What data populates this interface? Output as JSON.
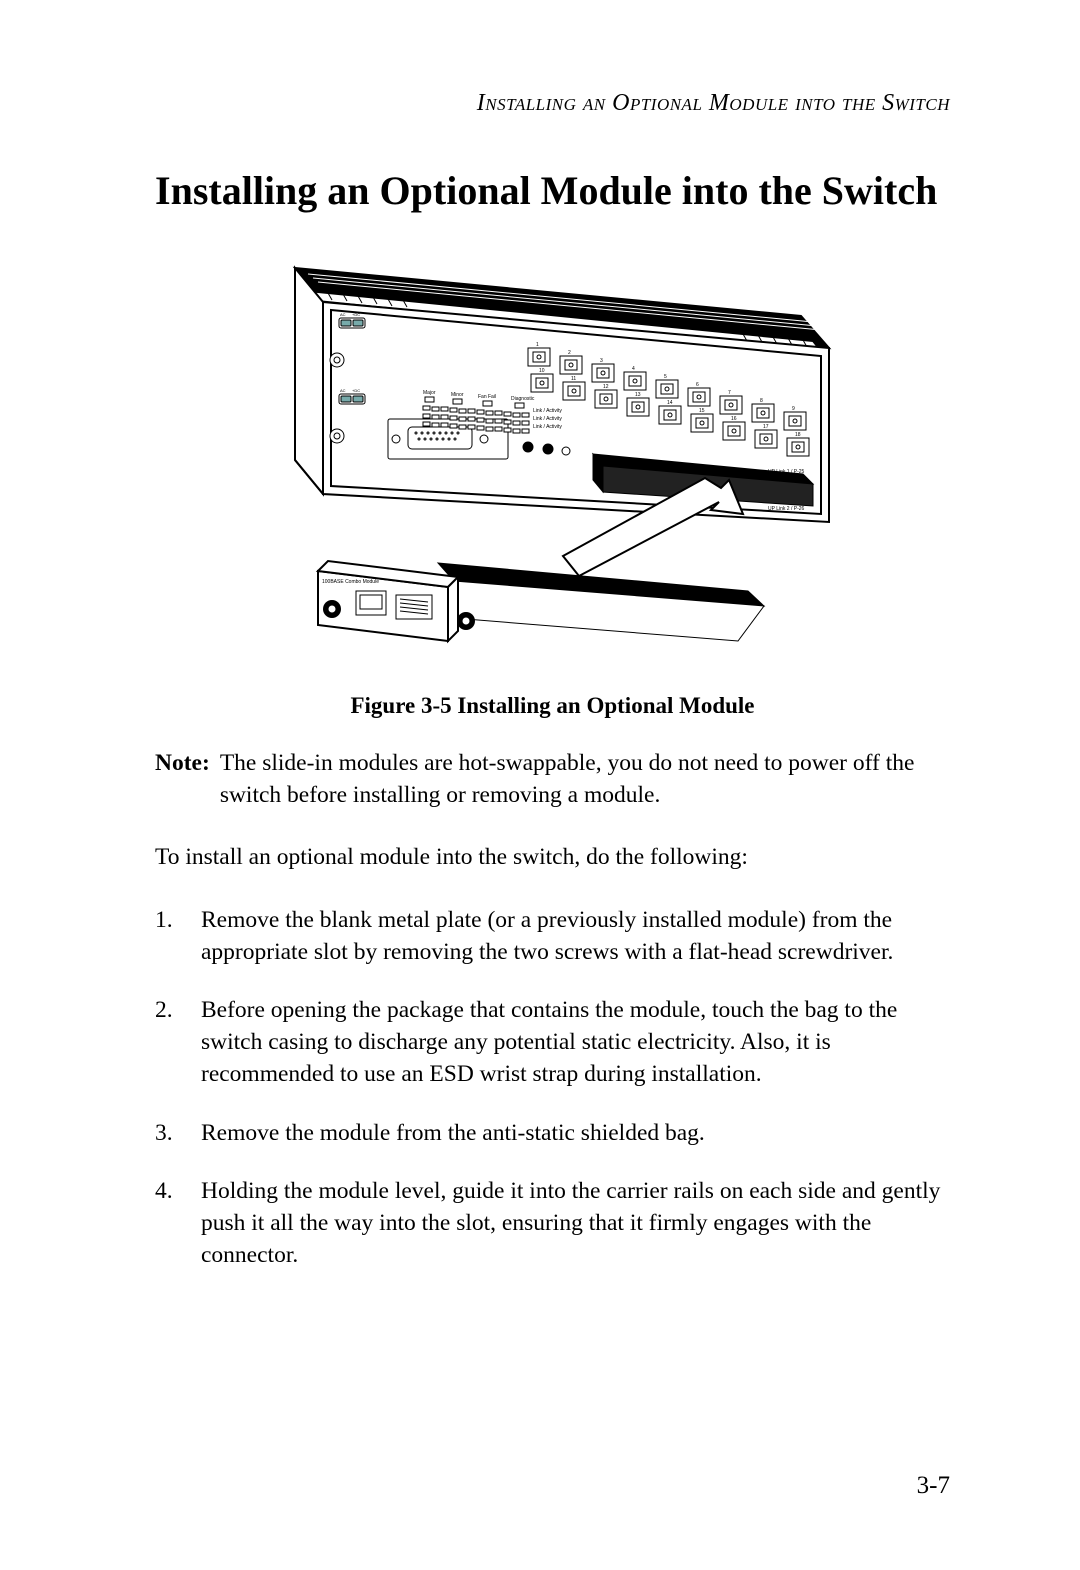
{
  "running_head": "Installing an Optional Module into the Switch",
  "title": "Installing an Optional Module into the Switch",
  "figure": {
    "caption": "Figure 3-5  Installing an Optional Module",
    "switch_labels": {
      "ac1": "AC",
      "dc1": "+DC",
      "ac2": "AC",
      "dc2": "+DC",
      "major": "Major",
      "minor": "Minor",
      "fanfail": "Fan Fail",
      "diag": "Diagnostic",
      "link1": "Link / Activity",
      "link2": "Link / Activity",
      "link3": "Link / Activity",
      "alarm": "Alarm Input & Output",
      "reset": "Reset",
      "aco": "ACO",
      "store": "+ Store",
      "uplink1": "UP Link 1 / P-25",
      "uplink2": "UP Link 2 / P-26",
      "module": "100BASE Combo Module",
      "port_numbers": [
        "1",
        "2",
        "3",
        "4",
        "5",
        "6",
        "7",
        "8",
        "9",
        "10",
        "11",
        "12",
        "13",
        "14",
        "15",
        "16",
        "17",
        "18"
      ]
    },
    "arrow_color": "#ffffff",
    "arrow_stroke": "#000000"
  },
  "note": {
    "label": "Note:",
    "text": "The slide-in modules are hot-swappable, you do not need to power off the switch before installing or removing a module."
  },
  "lead": "To install an optional module into the switch, do the following:",
  "steps": [
    "Remove the blank metal plate (or a previously installed module) from the appropriate slot by removing the two screws with a flat-head screwdriver.",
    "Before opening the package that contains the module, touch the bag to the switch casing to discharge any potential static electricity. Also, it is recommended to use an ESD wrist strap during installation.",
    "Remove the module from the anti-static shielded bag.",
    "Holding the module level, guide it into the carrier rails on each side and gently push it all the way into the slot, ensuring that it firmly engages with the connector."
  ],
  "page_number": "3-7"
}
